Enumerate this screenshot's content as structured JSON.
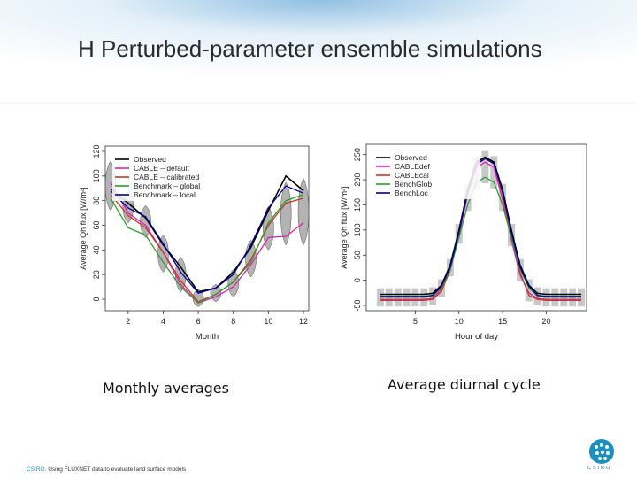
{
  "slide": {
    "title": "H Perturbed-parameter ensemble simulations",
    "footer_brand": "CSIRO.",
    "footer_text": "Using FLUXNET data to evaluate land surface models",
    "logo_text": "CSIRO",
    "captions": [
      "Monthly averages",
      "Average diurnal cycle"
    ]
  },
  "colors": {
    "header_gradient": [
      "#9fc9e6",
      "#f4f9fd",
      "#ffffff"
    ],
    "violin": "#9a9a9a",
    "accent": "#1a8fc0"
  },
  "chart_data": [
    {
      "type": "line",
      "title": "",
      "xlabel": "Month",
      "ylabel": "Average Qh flux [W/m²]",
      "xlim": [
        1,
        12
      ],
      "ylim": [
        -5,
        120
      ],
      "xticks": [
        2,
        4,
        6,
        8,
        10,
        12
      ],
      "yticks": [
        0,
        20,
        40,
        60,
        80,
        100,
        120
      ],
      "legend_position": "top-left",
      "x": [
        1,
        2,
        3,
        4,
        5,
        6,
        7,
        8,
        9,
        10,
        11,
        12
      ],
      "series": [
        {
          "name": "Observed",
          "color": "#000000",
          "values": [
            90,
            78,
            66,
            44,
            26,
            6,
            9,
            22,
            42,
            72,
            100,
            88
          ]
        },
        {
          "name": "CABLE – default",
          "color": "#e020b0",
          "values": [
            95,
            70,
            60,
            38,
            12,
            -3,
            2,
            10,
            28,
            50,
            51,
            62
          ]
        },
        {
          "name": "CABLE – calibrated",
          "color": "#c83a22",
          "values": [
            85,
            68,
            58,
            38,
            15,
            -2,
            4,
            14,
            32,
            60,
            78,
            82
          ]
        },
        {
          "name": "Benchmark – global",
          "color": "#2aa02a",
          "values": [
            82,
            58,
            52,
            30,
            10,
            -3,
            4,
            14,
            30,
            62,
            80,
            85
          ]
        },
        {
          "name": "Benchmark – local",
          "color": "#00009a",
          "values": [
            88,
            74,
            67,
            45,
            22,
            5,
            9,
            20,
            44,
            74,
            92,
            86
          ]
        }
      ],
      "violins": [
        {
          "x": 1,
          "lo": 72,
          "hi": 112
        },
        {
          "x": 2,
          "lo": 62,
          "hi": 88
        },
        {
          "x": 3,
          "lo": 50,
          "hi": 76
        },
        {
          "x": 4,
          "lo": 22,
          "hi": 52
        },
        {
          "x": 5,
          "lo": 6,
          "hi": 34
        },
        {
          "x": 6,
          "lo": -6,
          "hi": 8
        },
        {
          "x": 7,
          "lo": -2,
          "hi": 12
        },
        {
          "x": 8,
          "lo": 2,
          "hi": 24
        },
        {
          "x": 9,
          "lo": 18,
          "hi": 48
        },
        {
          "x": 10,
          "lo": 40,
          "hi": 75
        },
        {
          "x": 11,
          "lo": 44,
          "hi": 95
        },
        {
          "x": 12,
          "lo": 44,
          "hi": 98
        }
      ]
    },
    {
      "type": "line",
      "title": "",
      "xlabel": "Hour of day",
      "ylabel": "Average Qh flux [W/m²]",
      "xlim": [
        0,
        24
      ],
      "ylim": [
        -50,
        260
      ],
      "xticks": [
        5,
        10,
        15,
        20
      ],
      "yticks": [
        -50,
        0,
        50,
        100,
        150,
        200,
        250
      ],
      "legend_position": "top-left",
      "x": [
        1,
        2,
        3,
        4,
        5,
        6,
        7,
        8,
        9,
        10,
        11,
        12,
        13,
        14,
        15,
        16,
        17,
        18,
        19,
        20,
        21,
        22,
        23,
        24
      ],
      "series": [
        {
          "name": "Observed",
          "color": "#000000",
          "values": [
            -28,
            -28,
            -28,
            -28,
            -28,
            -28,
            -26,
            -10,
            30,
            100,
            180,
            235,
            245,
            235,
            180,
            100,
            30,
            -10,
            -26,
            -28,
            -28,
            -28,
            -28,
            -28
          ]
        },
        {
          "name": "CABLEdef",
          "color": "#e020b0",
          "values": [
            -38,
            -38,
            -38,
            -38,
            -38,
            -38,
            -36,
            -18,
            20,
            90,
            170,
            225,
            235,
            225,
            160,
            80,
            10,
            -25,
            -36,
            -38,
            -38,
            -38,
            -38,
            -38
          ]
        },
        {
          "name": "CABLEcal",
          "color": "#c83a22",
          "values": [
            -40,
            -40,
            -40,
            -40,
            -40,
            -40,
            -38,
            -22,
            20,
            95,
            175,
            232,
            242,
            232,
            170,
            90,
            15,
            -30,
            -38,
            -40,
            -40,
            -40,
            -40,
            -40
          ]
        },
        {
          "name": "BenchGlob",
          "color": "#2aa02a",
          "values": [
            -34,
            -34,
            -34,
            -34,
            -34,
            -34,
            -32,
            -15,
            22,
            85,
            150,
            195,
            205,
            195,
            150,
            85,
            22,
            -15,
            -32,
            -34,
            -34,
            -34,
            -34,
            -34
          ]
        },
        {
          "name": "BenchLoc",
          "color": "#00009a",
          "values": [
            -32,
            -32,
            -32,
            -32,
            -32,
            -32,
            -30,
            -12,
            26,
            95,
            175,
            230,
            242,
            232,
            175,
            95,
            26,
            -12,
            -30,
            -32,
            -32,
            -32,
            -32,
            -32
          ]
        }
      ]
    }
  ]
}
